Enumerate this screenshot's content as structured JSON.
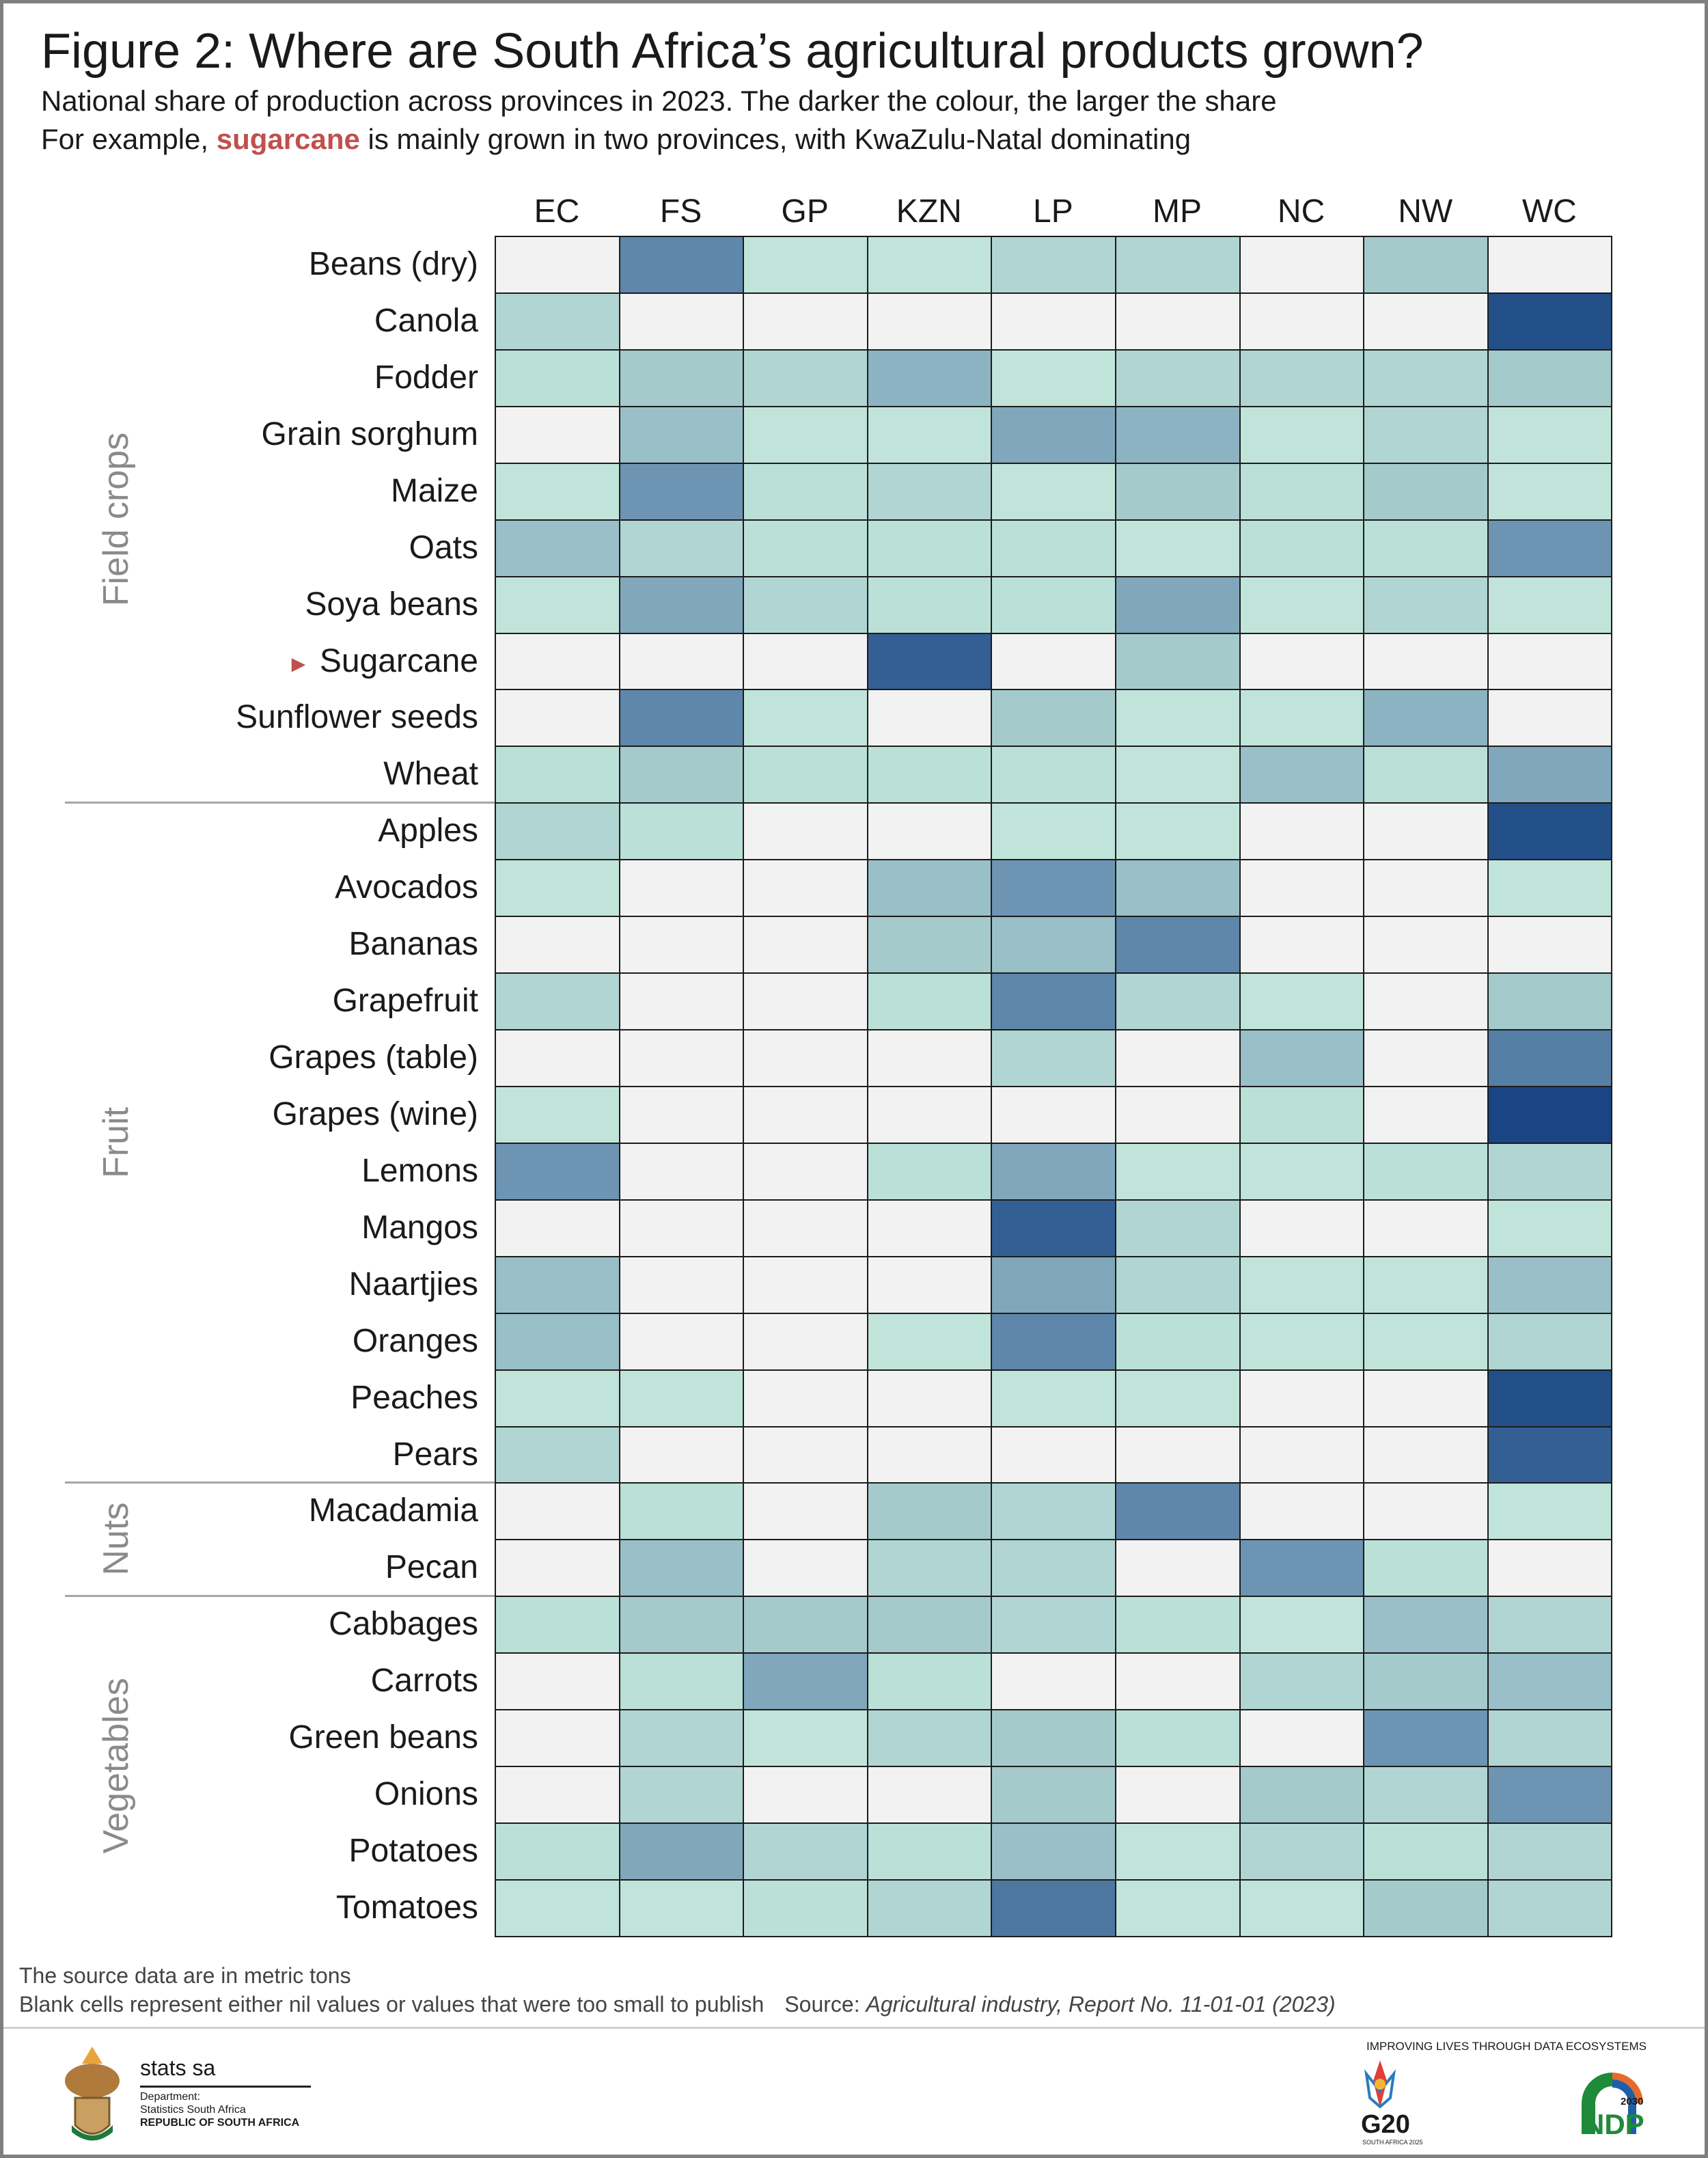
{
  "title": "Figure 2: Where are South Africa’s agricultural products grown?",
  "subtitle_line1": "National share of production across provinces in 2023. The darker the colour, the larger the share",
  "subtitle_line2": {
    "before": "For example, ",
    "highlight": "sugarcane",
    "after": " is mainly grown in two provinces, with KwaZulu-Natal dominating"
  },
  "highlight_color": "#c0504d",
  "chart_data": {
    "type": "heatmap",
    "value_meaning": "estimated national share of production (%) as indicated by cell shading; null = blank cell",
    "color_scale": {
      "low": "#c6e8dd",
      "high": "#163f80",
      "blank": "#f2f2f2"
    },
    "columns": [
      "EC",
      "FS",
      "GP",
      "KZN",
      "LP",
      "MP",
      "NC",
      "NW",
      "WC"
    ],
    "groups": [
      {
        "label": "Field crops",
        "rows": [
          {
            "label": "Beans (dry)",
            "values": [
              null,
              50,
              3,
              3,
              10,
              10,
              null,
              15,
              null
            ]
          },
          {
            "label": "Canola",
            "values": [
              10,
              null,
              null,
              null,
              null,
              null,
              null,
              null,
              85
            ]
          },
          {
            "label": "Fodder",
            "values": [
              6,
              15,
              10,
              25,
              3,
              10,
              10,
              10,
              15
            ]
          },
          {
            "label": "Grain sorghum",
            "values": [
              null,
              20,
              3,
              3,
              30,
              25,
              3,
              10,
              3
            ]
          },
          {
            "label": "Maize",
            "values": [
              3,
              40,
              6,
              10,
              3,
              15,
              6,
              15,
              3
            ]
          },
          {
            "label": "Oats",
            "values": [
              20,
              10,
              6,
              6,
              6,
              3,
              6,
              6,
              40
            ]
          },
          {
            "label": "Soya beans",
            "values": [
              3,
              30,
              10,
              6,
              6,
              30,
              3,
              10,
              3
            ]
          },
          {
            "label": "Sugarcane",
            "values": [
              null,
              null,
              null,
              72,
              null,
              15,
              null,
              null,
              null
            ],
            "marked": true
          },
          {
            "label": "Sunflower seeds",
            "values": [
              null,
              50,
              3,
              null,
              15,
              3,
              3,
              25,
              null
            ]
          },
          {
            "label": "Wheat",
            "values": [
              6,
              15,
              6,
              6,
              6,
              3,
              20,
              6,
              30
            ]
          }
        ]
      },
      {
        "label": "Fruit",
        "rows": [
          {
            "label": "Apples",
            "values": [
              10,
              6,
              null,
              null,
              3,
              3,
              null,
              null,
              85
            ]
          },
          {
            "label": "Avocados",
            "values": [
              3,
              null,
              null,
              20,
              40,
              20,
              null,
              null,
              3
            ]
          },
          {
            "label": "Bananas",
            "values": [
              null,
              null,
              null,
              15,
              20,
              50,
              null,
              null,
              null
            ]
          },
          {
            "label": "Grapefruit",
            "values": [
              10,
              null,
              null,
              6,
              50,
              10,
              3,
              null,
              15
            ]
          },
          {
            "label": "Grapes (table)",
            "values": [
              null,
              null,
              null,
              null,
              10,
              null,
              20,
              null,
              55
            ]
          },
          {
            "label": "Grapes (wine)",
            "values": [
              3,
              null,
              null,
              null,
              null,
              null,
              6,
              null,
              95
            ]
          },
          {
            "label": "Lemons",
            "values": [
              40,
              null,
              null,
              6,
              30,
              3,
              3,
              6,
              10
            ]
          },
          {
            "label": "Mangos",
            "values": [
              null,
              null,
              null,
              null,
              72,
              10,
              null,
              null,
              3
            ]
          },
          {
            "label": "Naartjies",
            "values": [
              20,
              null,
              null,
              null,
              30,
              10,
              3,
              3,
              20
            ]
          },
          {
            "label": "Oranges",
            "values": [
              20,
              null,
              null,
              3,
              50,
              6,
              3,
              3,
              10
            ]
          },
          {
            "label": "Peaches",
            "values": [
              3,
              3,
              null,
              null,
              3,
              3,
              null,
              null,
              85
            ]
          },
          {
            "label": "Pears",
            "values": [
              10,
              null,
              null,
              null,
              null,
              null,
              null,
              null,
              72
            ]
          }
        ]
      },
      {
        "label": "Nuts",
        "rows": [
          {
            "label": "Macadamia",
            "values": [
              null,
              6,
              null,
              15,
              10,
              50,
              null,
              null,
              3
            ]
          },
          {
            "label": "Pecan",
            "values": [
              null,
              20,
              null,
              10,
              10,
              null,
              40,
              6,
              null
            ]
          }
        ]
      },
      {
        "label": "Vegetables",
        "rows": [
          {
            "label": "Cabbages",
            "values": [
              6,
              15,
              15,
              15,
              10,
              6,
              3,
              20,
              10
            ]
          },
          {
            "label": "Carrots",
            "values": [
              null,
              6,
              30,
              6,
              null,
              null,
              10,
              15,
              20
            ]
          },
          {
            "label": "Green beans",
            "values": [
              null,
              10,
              3,
              10,
              15,
              6,
              null,
              40,
              10
            ]
          },
          {
            "label": "Onions",
            "values": [
              null,
              10,
              null,
              null,
              15,
              null,
              15,
              10,
              40
            ]
          },
          {
            "label": "Potatoes",
            "values": [
              6,
              30,
              10,
              6,
              20,
              3,
              10,
              6,
              10
            ]
          },
          {
            "label": "Tomatoes",
            "values": [
              3,
              3,
              6,
              10,
              60,
              3,
              3,
              15,
              10
            ]
          }
        ]
      }
    ]
  },
  "footer": {
    "note1": "The source data are in metric tons",
    "note2": "Blank cells represent either nil values or values that were too small to publish",
    "source_label": "Source: ",
    "source_text": "Agricultural industry, Report No. 11-01-01 (2023)"
  },
  "logos": {
    "statssa_name": "stats sa",
    "statssa_dept": "Department:",
    "statssa_org": "Statistics South Africa",
    "statssa_country": "REPUBLIC OF SOUTH AFRICA",
    "tagline": "IMPROVING LIVES THROUGH DATA ECOSYSTEMS",
    "g20": "G20",
    "g20_sub": "SOUTH AFRICA 2025",
    "ndp": "NDP",
    "ndp_year": "2030"
  }
}
